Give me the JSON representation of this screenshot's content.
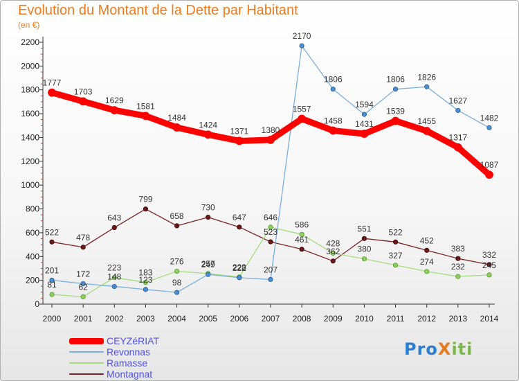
{
  "title": "Evolution du Montant de la Dette par Habitant",
  "subtitle": "(en €)",
  "logo": [
    "Pro",
    "X",
    "iti"
  ],
  "chart_data": {
    "type": "line",
    "x": [
      2000,
      2001,
      2002,
      2003,
      2004,
      2005,
      2006,
      2007,
      2008,
      2009,
      2010,
      2011,
      2012,
      2013,
      2014
    ],
    "ylim": [
      0,
      2200
    ],
    "yticks": [
      0,
      200,
      400,
      600,
      800,
      1000,
      1200,
      1400,
      1600,
      1800,
      2000,
      2200
    ],
    "grid": false,
    "legend_position": "bottom-left",
    "series": [
      {
        "name": "CEYZéRIAT",
        "color": "#ff0000",
        "values": [
          1777,
          1703,
          1629,
          1581,
          1484,
          1424,
          1371,
          1380,
          1557,
          1458,
          1431,
          1539,
          1455,
          1317,
          1087
        ]
      },
      {
        "name": "Revonnas",
        "color": "#7aaedb",
        "values": [
          201,
          172,
          148,
          123,
          98,
          249,
          222,
          207,
          2170,
          1806,
          1594,
          1806,
          1826,
          1627,
          1482
        ]
      },
      {
        "name": "Ramasse",
        "color": "#a4dc7c",
        "values": [
          81,
          62,
          223,
          183,
          276,
          257,
          228,
          646,
          586,
          428,
          380,
          327,
          274,
          232,
          245
        ]
      },
      {
        "name": "Montagnat",
        "color": "#7a2222",
        "values": [
          522,
          478,
          643,
          799,
          658,
          730,
          647,
          523,
          461,
          362,
          551,
          522,
          452,
          383,
          332
        ]
      }
    ]
  }
}
